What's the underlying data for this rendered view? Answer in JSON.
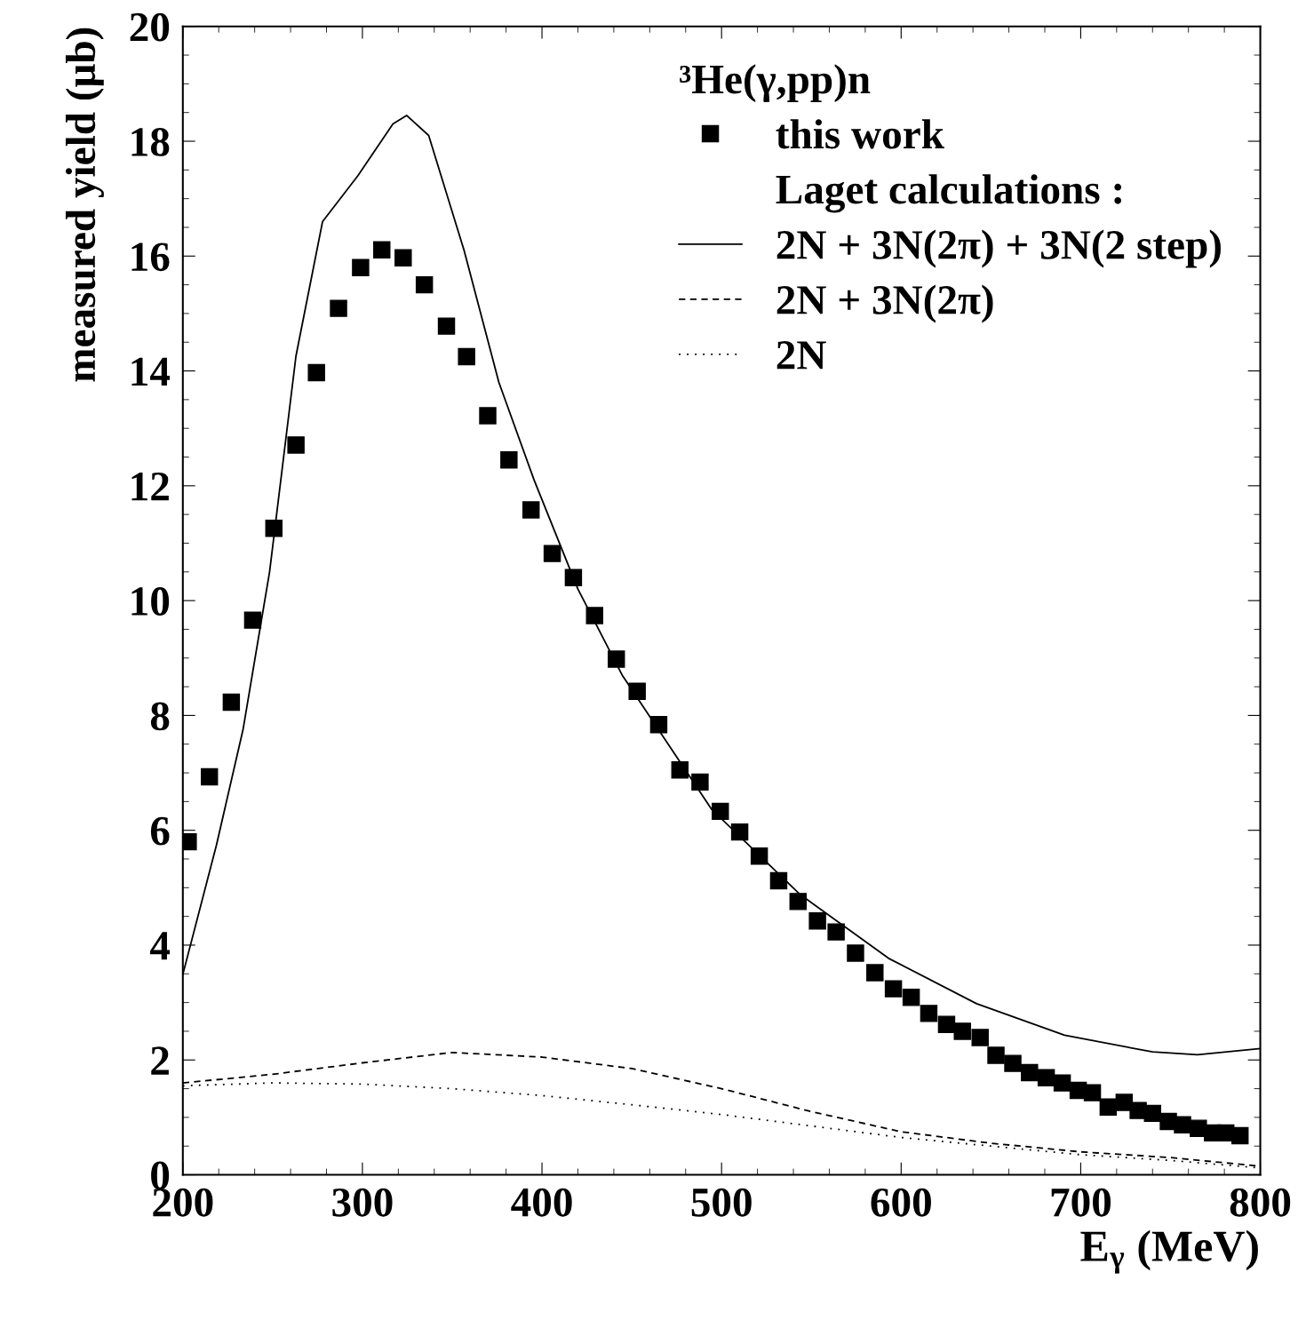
{
  "chart_data": {
    "type": "scatter",
    "xlabel": "E$_{γ}$ (MeV)",
    "ylabel": "measured yield (μb)",
    "legend_title": "³He(γ,pp)n",
    "annotations": [
      "Laget calculations :"
    ],
    "xlim": [
      200,
      800
    ],
    "ylim": [
      0,
      20
    ],
    "xticks": [
      200,
      300,
      400,
      500,
      600,
      700,
      800
    ],
    "yticks": [
      0,
      2,
      4,
      6,
      8,
      10,
      12,
      14,
      16,
      18,
      20
    ],
    "grid": false,
    "legend": "top right",
    "series": [
      {
        "name": "this work",
        "marker": "square",
        "color": "#000000",
        "x": [
          203,
          214.8,
          227,
          238.9,
          250.7,
          263,
          274.4,
          286.7,
          299,
          310.8,
          322.7,
          334.5,
          346.8,
          358,
          369.8,
          381.6,
          393.9,
          405.7,
          417.5,
          429.3,
          441.4,
          453,
          465,
          476.8,
          488,
          499.3,
          510.1,
          521,
          531.8,
          542.6,
          553.4,
          563.8,
          574.6,
          585.4,
          595.7,
          605.6,
          615.4,
          625.3,
          634.1,
          644,
          652.8,
          662.2,
          671.5,
          680.8,
          689.7,
          698.6,
          706.5,
          715.3,
          724.2,
          732,
          740,
          748.8,
          756.7,
          765.5,
          773.4,
          780.8,
          788.7
        ],
        "values": [
          5.8,
          6.93,
          8.23,
          9.66,
          11.26,
          12.71,
          13.97,
          15.09,
          15.8,
          16.11,
          15.97,
          15.5,
          14.78,
          14.25,
          13.22,
          12.45,
          11.58,
          10.82,
          10.4,
          9.74,
          8.98,
          8.42,
          7.84,
          7.05,
          6.84,
          6.33,
          5.97,
          5.55,
          5.12,
          4.76,
          4.42,
          4.23,
          3.86,
          3.52,
          3.24,
          3.09,
          2.81,
          2.62,
          2.5,
          2.39,
          2.08,
          1.94,
          1.78,
          1.69,
          1.6,
          1.47,
          1.43,
          1.18,
          1.26,
          1.12,
          1.07,
          0.93,
          0.87,
          0.81,
          0.73,
          0.73,
          0.68
        ]
      },
      {
        "name": "2N + 3N(2π) + 3N(2 step)",
        "type": "line",
        "line_style": "solid",
        "color": "#000000",
        "x": [
          200,
          218.7,
          233.5,
          248.3,
          263,
          277.8,
          297.5,
          317,
          324.6,
          336.9,
          356.6,
          376,
          395.6,
          420,
          444.7,
          464.9,
          494.6,
          543.8,
          593,
          642,
          691,
          740,
          765,
          800
        ],
        "values": [
          3.49,
          5.74,
          7.75,
          10.5,
          14.26,
          16.6,
          17.4,
          18.3,
          18.45,
          18.1,
          16.1,
          13.8,
          12.1,
          10.2,
          8.7,
          7.75,
          6.36,
          4.88,
          3.77,
          2.98,
          2.43,
          2.14,
          2.09,
          2.2
        ]
      },
      {
        "name": "2N + 3N(2π)",
        "type": "line",
        "line_style": "dashed",
        "color": "#000000",
        "x": [
          200,
          250,
          300,
          350,
          400,
          450,
          500,
          550,
          600,
          650,
          700,
          750,
          800
        ],
        "values": [
          1.6,
          1.75,
          1.95,
          2.13,
          2.05,
          1.85,
          1.5,
          1.1,
          0.75,
          0.55,
          0.4,
          0.3,
          0.15
        ]
      },
      {
        "name": "2N",
        "type": "line",
        "line_style": "dotted",
        "color": "#000000",
        "x": [
          200,
          250,
          300,
          350,
          400,
          450,
          500,
          550,
          600,
          650,
          700,
          750,
          800
        ],
        "values": [
          1.55,
          1.6,
          1.58,
          1.5,
          1.38,
          1.22,
          1.05,
          0.85,
          0.65,
          0.5,
          0.35,
          0.25,
          0.12
        ]
      }
    ]
  }
}
